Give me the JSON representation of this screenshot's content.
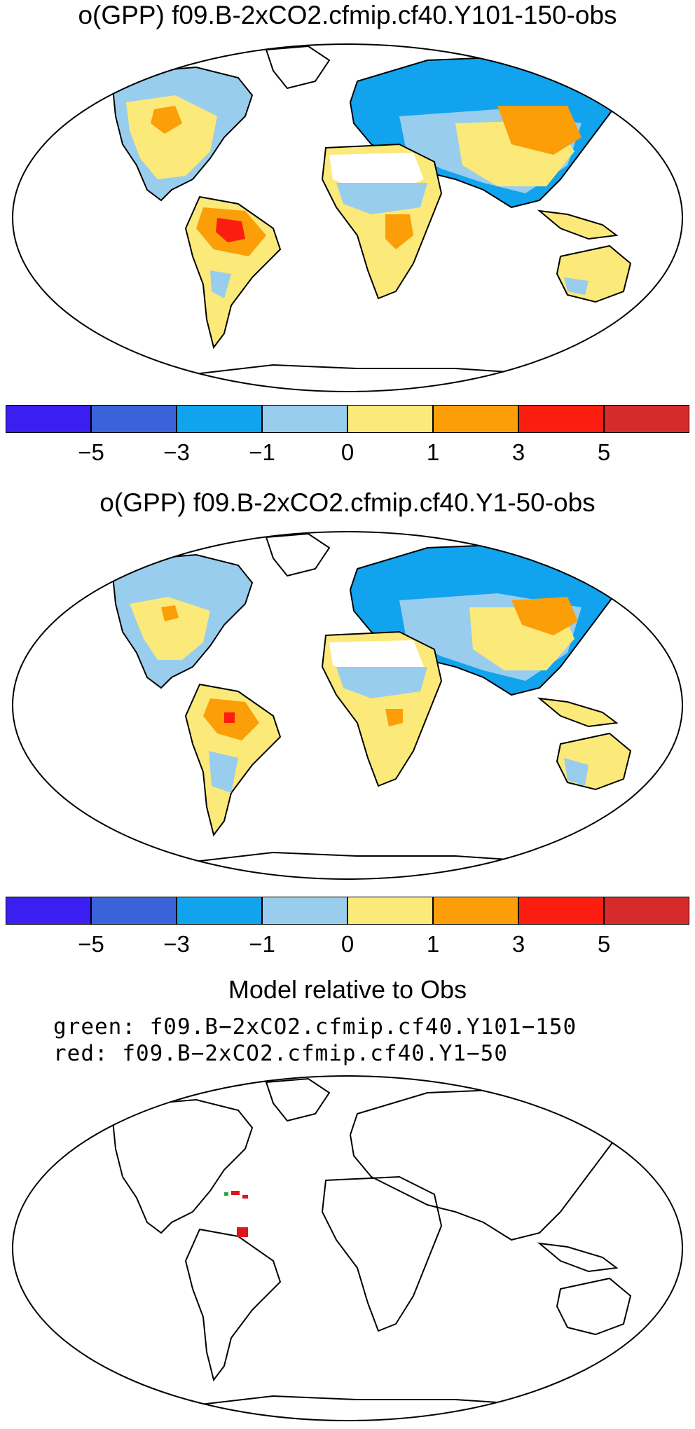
{
  "panel1": {
    "title": "o(GPP) f09.B-2xCO2.cfmip.cf40.Y101-150-obs"
  },
  "panel2": {
    "title": "o(GPP) f09.B-2xCO2.cfmip.cf40.Y1-50-obs"
  },
  "colorbar": {
    "colors": [
      "#3b1ef0",
      "#3a63d9",
      "#12a3ee",
      "#98cdee",
      "#fbe97a",
      "#fb9e08",
      "#fb1e10",
      "#d52b2b"
    ],
    "tick_labels": [
      "−5",
      "−3",
      "−1",
      "0",
      "1",
      "3",
      "5"
    ]
  },
  "panel3": {
    "title": "Model relative to Obs",
    "legend_green": "green: f09.B−2xCO2.cfmip.cf40.Y101−150",
    "legend_red": "red: f09.B−2xCO2.cfmip.cf40.Y1−50",
    "green_color": "#2aa84a",
    "red_color": "#e0151a"
  },
  "land_colors": {
    "ocean": "#ffffff",
    "desert": "#ffffff"
  }
}
